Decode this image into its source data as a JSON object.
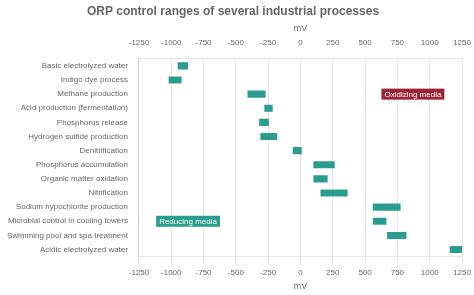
{
  "chart_data": {
    "type": "bar",
    "orientation": "horizontal",
    "title": "ORP control ranges of several industrial processes",
    "xlabel": "mV",
    "categories": [
      "Basic electrolyzed water",
      "Indigo dye process",
      "Methane production",
      "Acid production (fermentation)",
      "Phosphorus release",
      "Hydrogen sulfide production",
      "Denitrification",
      "Phosphorus accumulation",
      "Organic matter oxidation",
      "Nitrification",
      "Sodium hypochlorite production",
      "Microbial control in cooling towers",
      "Swimming pool and spa treatment",
      "Acidic electrolyzed water"
    ],
    "values": [
      [
        -950,
        -870
      ],
      [
        -1020,
        -920
      ],
      [
        -410,
        -270
      ],
      [
        -280,
        -215
      ],
      [
        -320,
        -245
      ],
      [
        -310,
        -180
      ],
      [
        -60,
        10
      ],
      [
        100,
        265
      ],
      [
        100,
        210
      ],
      [
        155,
        365
      ],
      [
        560,
        775
      ],
      [
        560,
        665
      ],
      [
        670,
        820
      ],
      [
        1155,
        1250
      ]
    ],
    "color": "#2a9d8f",
    "xlim": [
      -1250,
      1250
    ],
    "xticks": [
      -1250,
      -1000,
      -750,
      -500,
      -250,
      0,
      250,
      500,
      750,
      1000,
      1250
    ],
    "grid": true,
    "annotations": [
      {
        "text": "Reducing media",
        "x": -870,
        "category": "Microbial control in cooling towers",
        "color": "#2a9d8f"
      },
      {
        "text": "Oxidizing media",
        "x": 870,
        "category": "Methane production",
        "color": "#9b2335"
      }
    ]
  }
}
